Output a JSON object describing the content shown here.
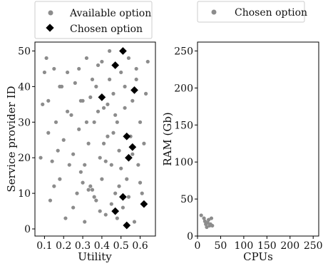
{
  "chart_data": [
    {
      "type": "scatter",
      "xlabel": "Utility",
      "ylabel": "Service provider ID",
      "xlim": [
        0.05,
        0.68
      ],
      "ylim": [
        -2,
        52.5
      ],
      "xticks": [
        "0.1",
        "0.2",
        "0.3",
        "0.4",
        "0.5",
        "0.6"
      ],
      "xtick_values": [
        0.1,
        0.2,
        0.3,
        0.4,
        0.5,
        0.6
      ],
      "yticks": [
        "0",
        "10",
        "20",
        "30",
        "40",
        "50"
      ],
      "ytick_values": [
        0,
        10,
        20,
        30,
        40,
        50
      ],
      "legend": {
        "placement": "top, outside plot",
        "entries": [
          "Available option",
          "Chosen option"
        ]
      },
      "series": [
        {
          "name": "Available option",
          "color": "#8c8c8c",
          "marker": "circle",
          "points": [
            [
              0.08,
              20
            ],
            [
              0.09,
              35
            ],
            [
              0.1,
              44
            ],
            [
              0.11,
              48
            ],
            [
              0.12,
              36
            ],
            [
              0.13,
              8
            ],
            [
              0.14,
              19
            ],
            [
              0.15,
              12
            ],
            [
              0.16,
              30
            ],
            [
              0.17,
              22
            ],
            [
              0.18,
              14
            ],
            [
              0.19,
              40
            ],
            [
              0.2,
              25
            ],
            [
              0.21,
              3
            ],
            [
              0.22,
              44
            ],
            [
              0.23,
              18
            ],
            [
              0.24,
              32
            ],
            [
              0.25,
              6
            ],
            [
              0.26,
              41
            ],
            [
              0.27,
              10
            ],
            [
              0.28,
              28
            ],
            [
              0.29,
              16
            ],
            [
              0.3,
              36
            ],
            [
              0.31,
              2
            ],
            [
              0.32,
              48
            ],
            [
              0.33,
              24
            ],
            [
              0.34,
              12
            ],
            [
              0.35,
              42
            ],
            [
              0.36,
              30
            ],
            [
              0.37,
              8
            ],
            [
              0.38,
              46
            ],
            [
              0.39,
              20
            ],
            [
              0.4,
              14
            ],
            [
              0.41,
              34
            ],
            [
              0.42,
              4
            ],
            [
              0.43,
              26
            ],
            [
              0.44,
              50
            ],
            [
              0.45,
              18
            ],
            [
              0.46,
              38
            ],
            [
              0.47,
              10
            ],
            [
              0.48,
              30
            ],
            [
              0.49,
              22
            ],
            [
              0.5,
              44
            ],
            [
              0.51,
              6
            ],
            [
              0.52,
              34
            ],
            [
              0.53,
              14
            ],
            [
              0.54,
              48
            ],
            [
              0.55,
              26
            ],
            [
              0.56,
              36
            ],
            [
              0.57,
              2
            ],
            [
              0.58,
              42
            ],
            [
              0.59,
              18
            ],
            [
              0.6,
              30
            ],
            [
              0.61,
              10
            ],
            [
              0.62,
              24
            ],
            [
              0.63,
              38
            ],
            [
              0.64,
              47
            ],
            [
              0.12,
              27
            ],
            [
              0.15,
              45
            ],
            [
              0.18,
              40
            ],
            [
              0.22,
              33
            ],
            [
              0.25,
              21
            ],
            [
              0.28,
              45
            ],
            [
              0.3,
              13
            ],
            [
              0.32,
              30
            ],
            [
              0.34,
              37
            ],
            [
              0.36,
              9
            ],
            [
              0.38,
              33
            ],
            [
              0.4,
              47
            ],
            [
              0.42,
              19
            ],
            [
              0.44,
              42
            ],
            [
              0.46,
              27
            ],
            [
              0.48,
              3
            ],
            [
              0.5,
              17
            ],
            [
              0.52,
              40
            ],
            [
              0.54,
              9
            ],
            [
              0.56,
              21
            ],
            [
              0.58,
              45
            ],
            [
              0.6,
              13
            ],
            [
              0.33,
              11
            ],
            [
              0.35,
              11
            ],
            [
              0.37,
              40
            ],
            [
              0.39,
              5
            ],
            [
              0.41,
              24
            ],
            [
              0.43,
              35
            ],
            [
              0.45,
              7
            ],
            [
              0.47,
              32
            ],
            [
              0.49,
              12
            ],
            [
              0.31,
              18
            ],
            [
              0.29,
              36
            ]
          ]
        },
        {
          "name": "Chosen option",
          "color": "#000000",
          "marker": "diamond",
          "points": [
            [
              0.51,
              50
            ],
            [
              0.47,
              46
            ],
            [
              0.57,
              39
            ],
            [
              0.4,
              37
            ],
            [
              0.53,
              26
            ],
            [
              0.56,
              23
            ],
            [
              0.54,
              20
            ],
            [
              0.51,
              9
            ],
            [
              0.62,
              7
            ],
            [
              0.47,
              5
            ],
            [
              0.53,
              1
            ]
          ]
        }
      ]
    },
    {
      "type": "scatter",
      "xlabel": "CPUs",
      "ylabel": "RAM (Gb)",
      "xlim": [
        0,
        262
      ],
      "ylim": [
        0,
        262
      ],
      "xticks": [
        "0",
        "50",
        "100",
        "150",
        "200",
        "250"
      ],
      "xtick_values": [
        0,
        50,
        100,
        150,
        200,
        250
      ],
      "yticks": [
        "0",
        "50",
        "100",
        "150",
        "200",
        "250"
      ],
      "ytick_values": [
        0,
        50,
        100,
        150,
        200,
        250
      ],
      "legend": {
        "placement": "top, outside plot",
        "entries": [
          "Chosen option"
        ]
      },
      "series": [
        {
          "name": "Chosen option",
          "color": "#8c8c8c",
          "marker": "circle",
          "points": [
            [
              8,
              28
            ],
            [
              14,
              24
            ],
            [
              16,
              20
            ],
            [
              18,
              16
            ],
            [
              20,
              12
            ],
            [
              22,
              18
            ],
            [
              24,
              22
            ],
            [
              26,
              14
            ],
            [
              28,
              16
            ],
            [
              30,
              24
            ],
            [
              32,
              14
            ]
          ]
        }
      ]
    }
  ]
}
